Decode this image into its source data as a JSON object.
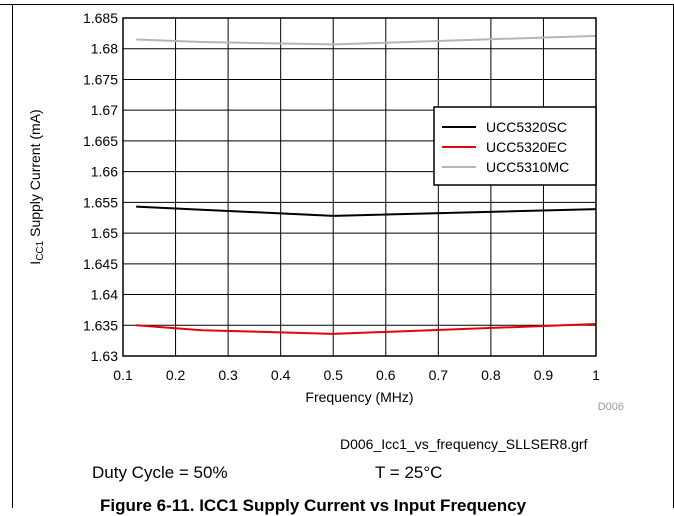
{
  "chart_data": {
    "type": "line",
    "title": "",
    "xlabel": "Frequency (MHz)",
    "ylabel": "ICC1 Supply Current (mA)",
    "ylabel_parts": {
      "main": "I",
      "sub": "CC1",
      "rest": " Supply Current (mA)"
    },
    "xlim": [
      0.1,
      1
    ],
    "ylim": [
      1.63,
      1.685
    ],
    "x_ticks": [
      "0.1",
      "0.2",
      "0.3",
      "0.4",
      "0.5",
      "0.6",
      "0.7",
      "0.8",
      "0.9",
      "1"
    ],
    "y_ticks": [
      "1.63",
      "1.635",
      "1.64",
      "1.645",
      "1.65",
      "1.655",
      "1.66",
      "1.665",
      "1.67",
      "1.675",
      "1.68",
      "1.685"
    ],
    "grid": true,
    "legend_position": "right",
    "series": [
      {
        "name": "UCC5320SC",
        "color": "#000000",
        "x": [
          0.125,
          0.25,
          0.5,
          1.0
        ],
        "y": [
          1.6543,
          1.6538,
          1.6528,
          1.6539
        ]
      },
      {
        "name": "UCC5320EC",
        "color": "#e8000b",
        "x": [
          0.125,
          0.25,
          0.5,
          1.0
        ],
        "y": [
          1.635,
          1.6342,
          1.6336,
          1.6352
        ]
      },
      {
        "name": "UCC5310MC",
        "color": "#b5b5b5",
        "x": [
          0.125,
          0.25,
          0.5,
          1.0
        ],
        "y": [
          1.6815,
          1.6811,
          1.6807,
          1.6821
        ]
      }
    ],
    "code_label": "D006"
  },
  "file_name": "D006_Icc1_vs_frequency_SLLSER8.grf",
  "conditions": {
    "duty_cycle": "Duty Cycle = 50%",
    "temperature": "T = 25°C"
  },
  "caption": "Figure 6-11. ICC1 Supply Current vs Input Frequency"
}
